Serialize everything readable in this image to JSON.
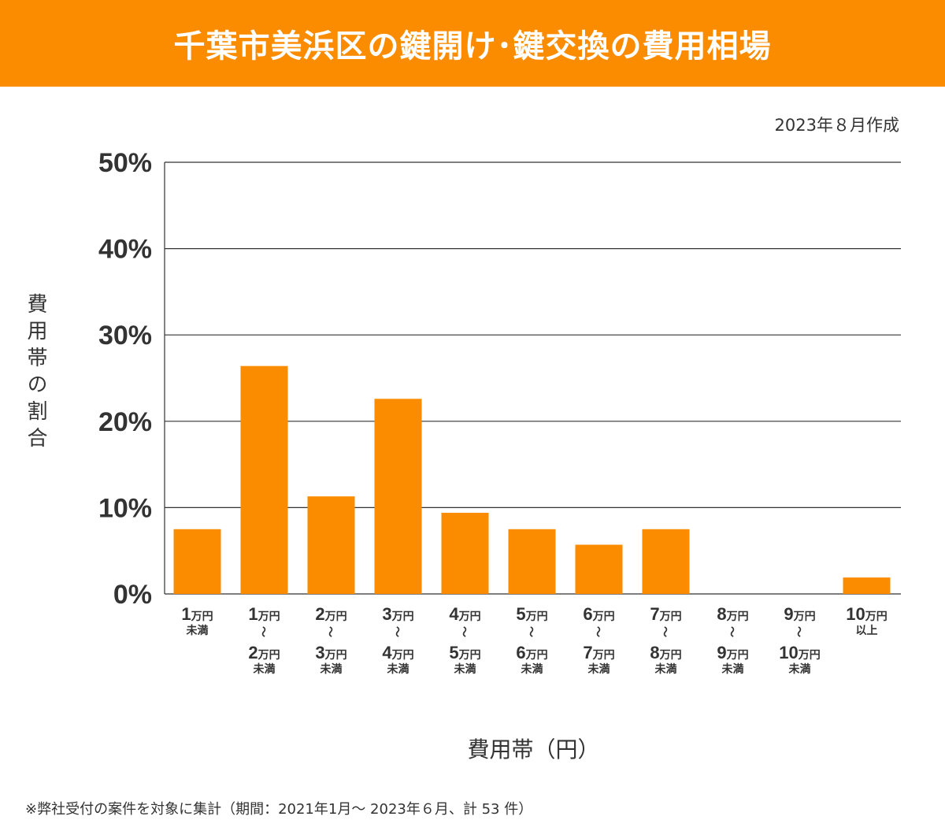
{
  "header": {
    "title": "千葉市美浜区の鍵開け･鍵交換の費用相場"
  },
  "created_note": "2023年８月作成",
  "footnote": "※弊社受付の案件を対象に集計（期間：2021年1月～ 2023年６月、計 53 件）",
  "colors": {
    "accent": "#fb8c00",
    "bar": "#fb8c00",
    "grid": "#333333"
  },
  "chart_data": {
    "type": "bar",
    "ylabel": "費用帯の割合",
    "xlabel": "費用帯（円）",
    "ylim": [
      0,
      50
    ],
    "yticks": [
      "0%",
      "10%",
      "20%",
      "30%",
      "40%",
      "50%"
    ],
    "ytick_values": [
      0,
      10,
      20,
      30,
      40,
      50
    ],
    "grid": true,
    "categories": [
      [
        {
          "n": "1",
          "u": "万円"
        },
        {
          "s": "未満"
        }
      ],
      [
        {
          "n": "1",
          "u": "万円"
        },
        {
          "t": "～"
        },
        {
          "n": "2",
          "u": "万円"
        },
        {
          "s": "未満"
        }
      ],
      [
        {
          "n": "2",
          "u": "万円"
        },
        {
          "t": "～"
        },
        {
          "n": "3",
          "u": "万円"
        },
        {
          "s": "未満"
        }
      ],
      [
        {
          "n": "3",
          "u": "万円"
        },
        {
          "t": "～"
        },
        {
          "n": "4",
          "u": "万円"
        },
        {
          "s": "未満"
        }
      ],
      [
        {
          "n": "4",
          "u": "万円"
        },
        {
          "t": "～"
        },
        {
          "n": "5",
          "u": "万円"
        },
        {
          "s": "未満"
        }
      ],
      [
        {
          "n": "5",
          "u": "万円"
        },
        {
          "t": "～"
        },
        {
          "n": "6",
          "u": "万円"
        },
        {
          "s": "未満"
        }
      ],
      [
        {
          "n": "6",
          "u": "万円"
        },
        {
          "t": "～"
        },
        {
          "n": "7",
          "u": "万円"
        },
        {
          "s": "未満"
        }
      ],
      [
        {
          "n": "7",
          "u": "万円"
        },
        {
          "t": "～"
        },
        {
          "n": "8",
          "u": "万円"
        },
        {
          "s": "未満"
        }
      ],
      [
        {
          "n": "8",
          "u": "万円"
        },
        {
          "t": "～"
        },
        {
          "n": "9",
          "u": "万円"
        },
        {
          "s": "未満"
        }
      ],
      [
        {
          "n": "9",
          "u": "万円"
        },
        {
          "t": "～"
        },
        {
          "n": "10",
          "u": "万円"
        },
        {
          "s": "未満"
        }
      ],
      [
        {
          "n": "10",
          "u": "万円"
        },
        {
          "s": "以上"
        }
      ]
    ],
    "values": [
      7.5,
      26.4,
      11.3,
      22.6,
      9.4,
      7.5,
      5.7,
      7.5,
      0,
      0,
      1.9
    ]
  }
}
